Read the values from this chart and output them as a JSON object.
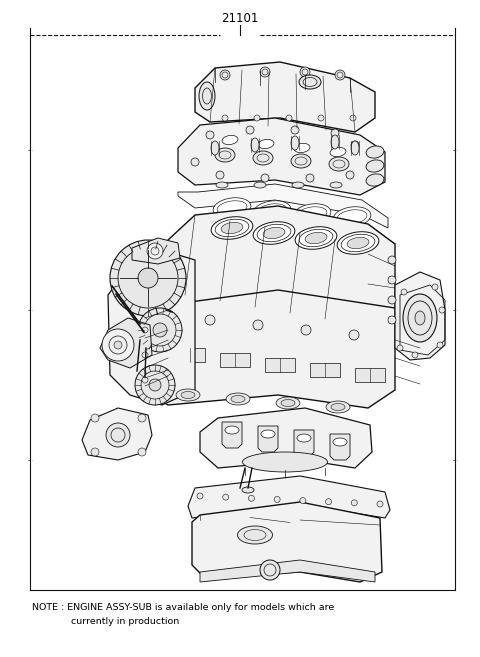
{
  "title_number": "21101",
  "note_line1": "NOTE : ENGINE ASSY-SUB is available only for models which are",
  "note_line2": "       currently in production",
  "bg_color": "#ffffff",
  "border_color": "#000000",
  "text_color": "#000000",
  "fig_width": 4.8,
  "fig_height": 6.57,
  "dpi": 100,
  "title_fontsize": 8.5,
  "note_fontsize": 6.8,
  "lc": "#111111"
}
